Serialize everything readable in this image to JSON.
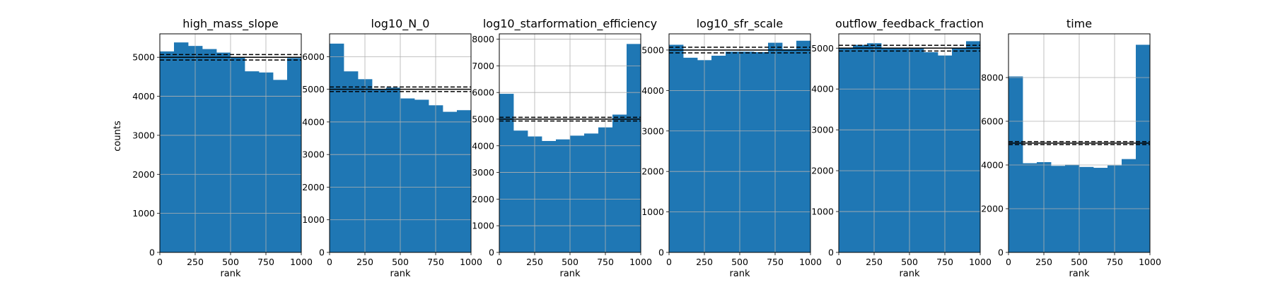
{
  "figure": {
    "ylabel": "counts",
    "bar_color": "#1f77b4",
    "band_color": "#000000"
  },
  "chart_data": [
    {
      "type": "bar",
      "title": "high_mass_slope",
      "xlabel": "rank",
      "ylabel": "counts",
      "xlim": [
        0,
        1000
      ],
      "ylim": [
        0,
        5600
      ],
      "xticks": [
        0,
        250,
        500,
        750,
        1000
      ],
      "yticks": [
        0,
        1000,
        2000,
        3000,
        4000,
        5000
      ],
      "bin_edges": [
        0,
        100,
        200,
        300,
        400,
        500,
        600,
        700,
        800,
        900,
        1000
      ],
      "values": [
        5150,
        5380,
        5290,
        5210,
        5120,
        5000,
        4640,
        4610,
        4420,
        4980
      ],
      "reference_lines": {
        "mean": 5000,
        "lower": 4930,
        "upper": 5070
      },
      "grid": true
    },
    {
      "type": "bar",
      "title": "log10_N_0",
      "xlabel": "rank",
      "ylabel": "",
      "xlim": [
        0,
        1000
      ],
      "ylim": [
        0,
        6700
      ],
      "xticks": [
        0,
        250,
        500,
        750,
        1000
      ],
      "yticks": [
        0,
        1000,
        2000,
        3000,
        4000,
        5000,
        6000
      ],
      "bin_edges": [
        0,
        100,
        200,
        300,
        400,
        500,
        600,
        700,
        800,
        900,
        1000
      ],
      "values": [
        6400,
        5550,
        5310,
        5000,
        5050,
        4720,
        4680,
        4510,
        4310,
        4360
      ],
      "reference_lines": {
        "mean": 5000,
        "lower": 4930,
        "upper": 5070
      },
      "grid": true
    },
    {
      "type": "bar",
      "title": "log10_starformation_efficiency",
      "xlabel": "rank",
      "ylabel": "",
      "xlim": [
        0,
        1000
      ],
      "ylim": [
        0,
        8200
      ],
      "xticks": [
        0,
        250,
        500,
        750,
        1000
      ],
      "yticks": [
        0,
        1000,
        2000,
        3000,
        4000,
        5000,
        6000,
        7000,
        8000
      ],
      "bin_edges": [
        0,
        100,
        200,
        300,
        400,
        500,
        600,
        700,
        800,
        900,
        1000
      ],
      "values": [
        5950,
        4570,
        4350,
        4180,
        4240,
        4380,
        4460,
        4690,
        5170,
        7820
      ],
      "reference_lines": {
        "mean": 5000,
        "lower": 4930,
        "upper": 5070
      },
      "grid": true
    },
    {
      "type": "bar",
      "title": "log10_sfr_scale",
      "xlabel": "rank",
      "ylabel": "",
      "xlim": [
        0,
        1000
      ],
      "ylim": [
        0,
        5400
      ],
      "xticks": [
        0,
        250,
        500,
        750,
        1000
      ],
      "yticks": [
        0,
        1000,
        2000,
        3000,
        4000,
        5000
      ],
      "bin_edges": [
        0,
        100,
        200,
        300,
        400,
        500,
        600,
        700,
        800,
        900,
        1000
      ],
      "values": [
        5130,
        4810,
        4750,
        4860,
        4960,
        4960,
        4950,
        5180,
        5020,
        5230
      ],
      "reference_lines": {
        "mean": 5000,
        "lower": 4930,
        "upper": 5070
      },
      "grid": true
    },
    {
      "type": "bar",
      "title": "outflow_feedback_fraction",
      "xlabel": "rank",
      "ylabel": "",
      "xlim": [
        0,
        1000
      ],
      "ylim": [
        0,
        5350
      ],
      "xticks": [
        0,
        250,
        500,
        750,
        1000
      ],
      "yticks": [
        0,
        1000,
        2000,
        3000,
        4000,
        5000
      ],
      "bin_edges": [
        0,
        100,
        200,
        300,
        400,
        500,
        600,
        700,
        800,
        900,
        1000
      ],
      "values": [
        5000,
        5080,
        5120,
        5000,
        5000,
        4990,
        4900,
        4820,
        4990,
        5170
      ],
      "reference_lines": {
        "mean": 5000,
        "lower": 4930,
        "upper": 5070
      },
      "grid": true
    },
    {
      "type": "bar",
      "title": "time",
      "xlabel": "rank",
      "ylabel": "",
      "xlim": [
        0,
        1000
      ],
      "ylim": [
        0,
        10000
      ],
      "xticks": [
        0,
        250,
        500,
        750,
        1000
      ],
      "yticks": [
        0,
        2000,
        4000,
        6000,
        8000
      ],
      "bin_edges": [
        0,
        100,
        200,
        300,
        400,
        500,
        600,
        700,
        800,
        900,
        1000
      ],
      "values": [
        8050,
        4080,
        4130,
        3960,
        4010,
        3910,
        3870,
        3980,
        4270,
        9500
      ],
      "reference_lines": {
        "mean": 5000,
        "lower": 4930,
        "upper": 5070
      },
      "grid": true
    }
  ]
}
